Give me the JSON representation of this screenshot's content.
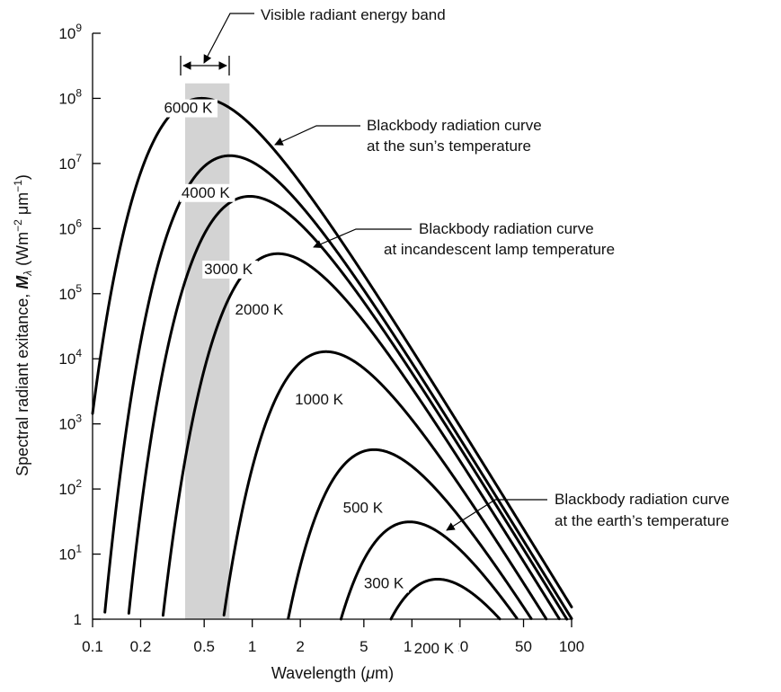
{
  "chart_data": {
    "type": "line",
    "x_scale": "log",
    "y_scale": "log",
    "xlim": [
      0.1,
      100
    ],
    "ylim": [
      1,
      1000000000
    ],
    "xlabel": "Wavelength (μm)",
    "ylabel": "Spectral radiant exitance, M_λ (Wm⁻² μm⁻¹)",
    "ylabel_parts": {
      "prefix": "Spectral radiant exitance, ",
      "symbol": "M",
      "symbol_sub": "λ",
      "unit_open": " (Wm",
      "exp1": "−2",
      "mid": " μm",
      "exp2": "−1",
      "close": ")"
    },
    "x_ticks": [
      0.1,
      0.2,
      0.5,
      1,
      2,
      5,
      10,
      20,
      50,
      100
    ],
    "x_tick_labels": [
      "0.1",
      "0.2",
      "0.5",
      "1",
      "2",
      "5",
      "10",
      "20",
      "50",
      "100"
    ],
    "y_ticks": [
      {
        "value": 1,
        "base": "1",
        "exp": ""
      },
      {
        "value": 10,
        "base": "10",
        "exp": "1"
      },
      {
        "value": 100,
        "base": "10",
        "exp": "2"
      },
      {
        "value": 1000,
        "base": "10",
        "exp": "3"
      },
      {
        "value": 10000,
        "base": "10",
        "exp": "4"
      },
      {
        "value": 100000,
        "base": "10",
        "exp": "5"
      },
      {
        "value": 1000000,
        "base": "10",
        "exp": "6"
      },
      {
        "value": 10000000,
        "base": "10",
        "exp": "7"
      },
      {
        "value": 100000000,
        "base": "10",
        "exp": "8"
      },
      {
        "value": 1000000000,
        "base": "10",
        "exp": "9"
      }
    ],
    "series": [
      {
        "name": "6000 K",
        "temperature": 6000,
        "label_at": [
          0.28,
          60000000
        ]
      },
      {
        "name": "4000 K",
        "temperature": 4000,
        "label_at": [
          0.36,
          3000000
        ]
      },
      {
        "name": "3000 K",
        "temperature": 3000,
        "label_at": [
          0.5,
          200000
        ]
      },
      {
        "name": "2000 K",
        "temperature": 2000,
        "label_at": [
          0.78,
          48000
        ]
      },
      {
        "name": "1000 K",
        "temperature": 1000,
        "label_at": [
          1.85,
          2000
        ]
      },
      {
        "name": "500 K",
        "temperature": 500,
        "label_at": [
          3.7,
          43
        ]
      },
      {
        "name": "300 K",
        "temperature": 300,
        "label_at": [
          5.0,
          3
        ]
      },
      {
        "name": "200 K",
        "temperature": 200,
        "label_at": [
          10.3,
          0.3
        ]
      }
    ],
    "visible_band": {
      "x": [
        0.38,
        0.72
      ],
      "ylim_top": 170000000,
      "color": "#d3d3d3"
    },
    "annotations": [
      {
        "key": "visible",
        "lines": [
          "Visible radiant energy band"
        ]
      },
      {
        "key": "sun",
        "lines": [
          "Blackbody radiation curve",
          "at the sun’s temperature"
        ]
      },
      {
        "key": "lamp",
        "lines": [
          "Blackbody radiation curve",
          "at incandescent lamp temperature"
        ]
      },
      {
        "key": "earth",
        "lines": [
          "Blackbody radiation curve",
          "at the earth’s temperature"
        ]
      }
    ],
    "grid": false,
    "legend": "none"
  }
}
